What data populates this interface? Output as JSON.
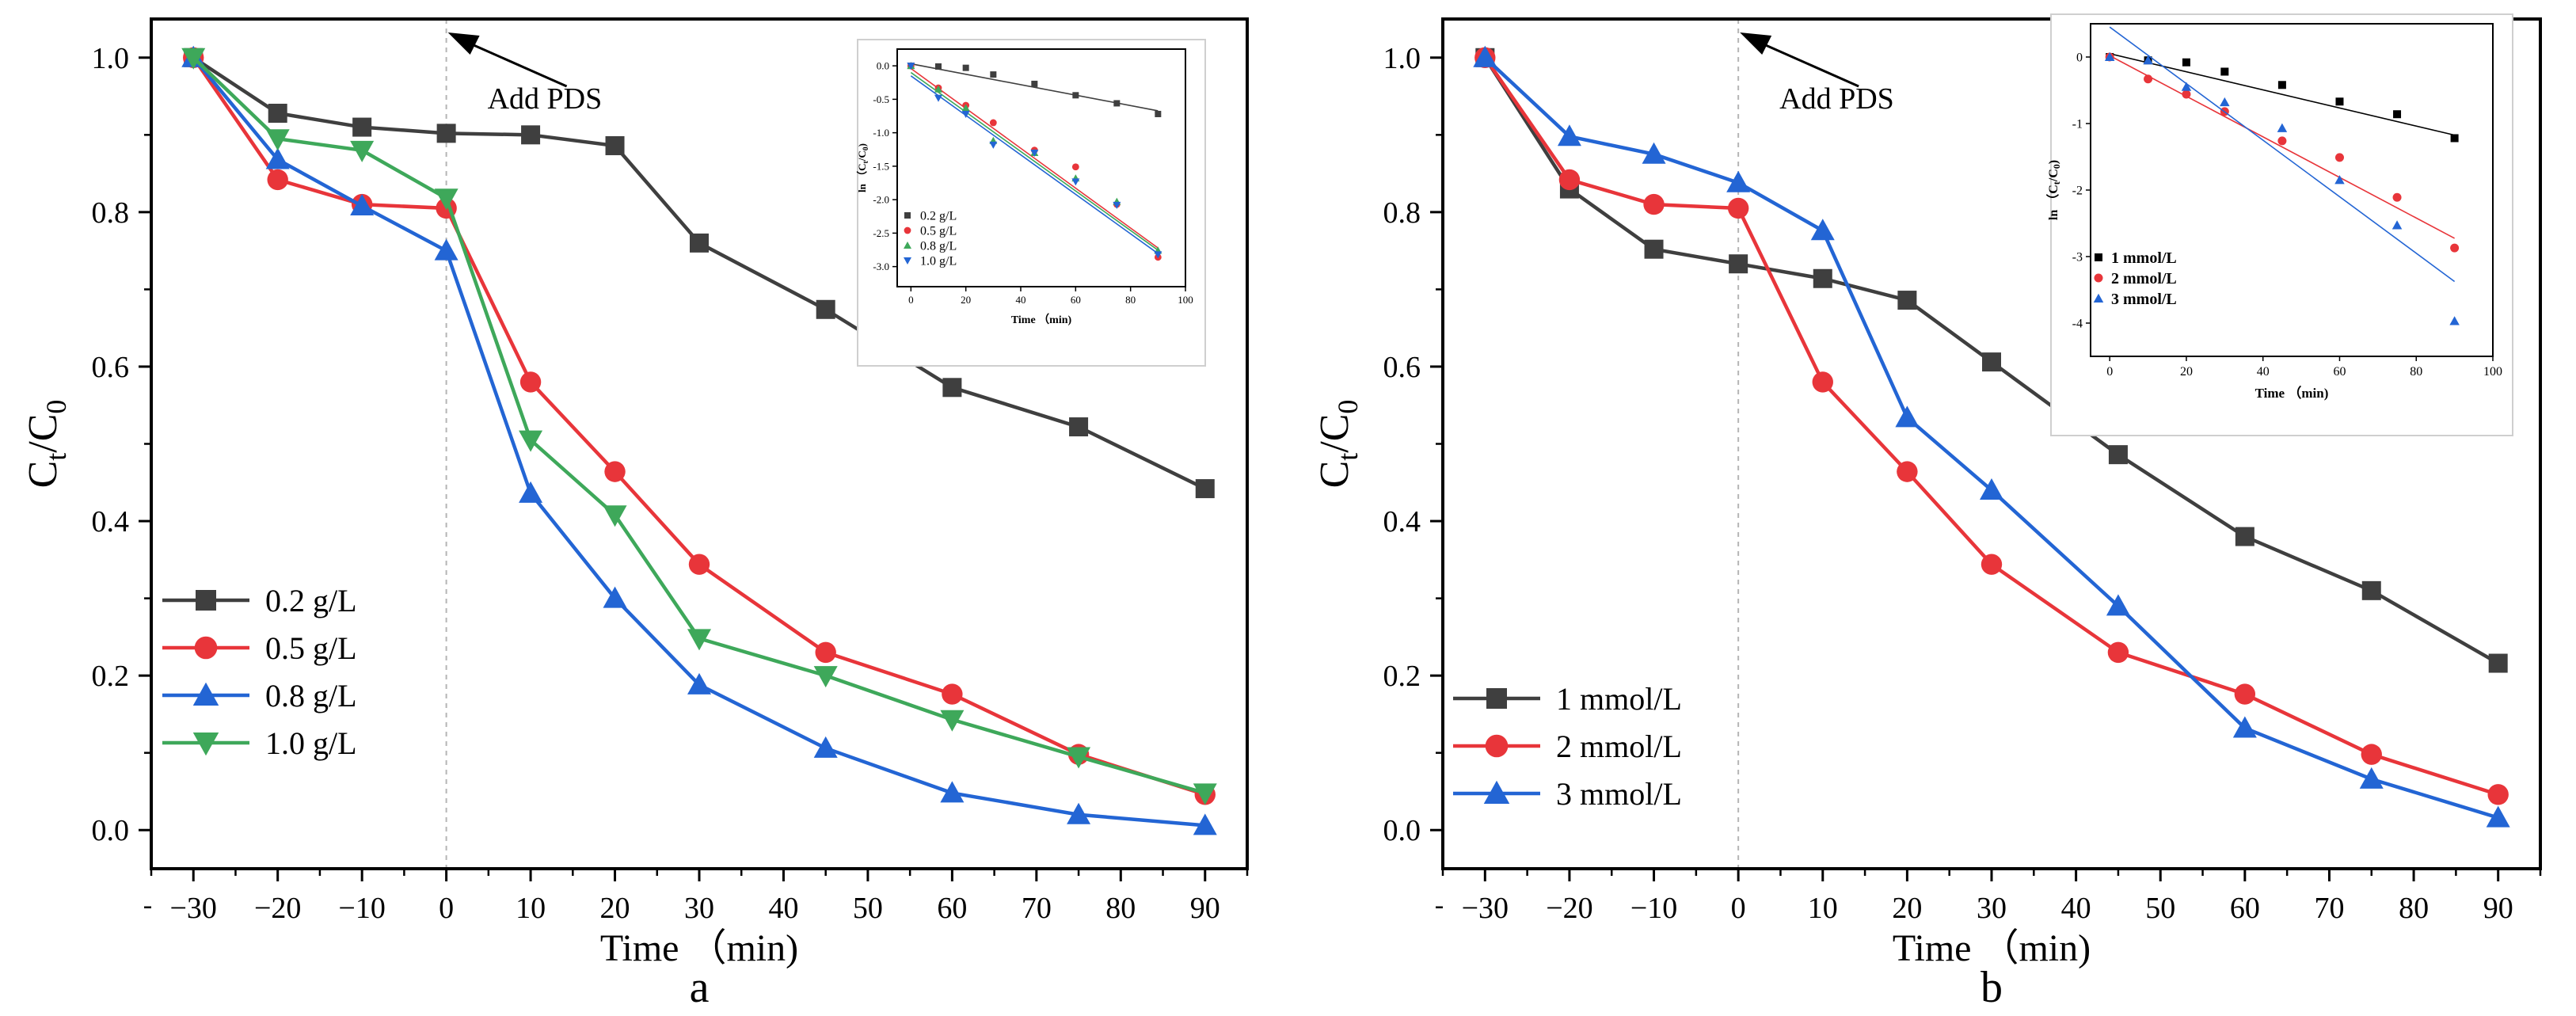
{
  "panel_labels": [
    "a",
    "b"
  ],
  "chart_data": [
    {
      "type": "line",
      "panel": "a",
      "xlabel": "Time （min)",
      "ylabel_main": "C",
      "ylabel_sub1": "t",
      "ylabel_mid": "/C",
      "ylabel_sub2": "0",
      "xlim": [
        -35,
        95
      ],
      "ylim": [
        -0.05,
        1.05
      ],
      "xticks": [
        -30,
        -20,
        -10,
        0,
        10,
        20,
        30,
        40,
        50,
        60,
        70,
        80,
        90
      ],
      "yticks": [
        0.0,
        0.2,
        0.4,
        0.6,
        0.8,
        1.0
      ],
      "x": [
        -30,
        -20,
        -10,
        0,
        10,
        20,
        30,
        45,
        60,
        75,
        90
      ],
      "annotation": "Add PDS",
      "legend_position": "lower-left",
      "series": [
        {
          "name": "0.2 g/L",
          "color": "#3f3f3f",
          "marker": "square",
          "values": [
            1.0,
            0.928,
            0.91,
            0.902,
            0.9,
            0.886,
            0.76,
            0.674,
            0.573,
            0.522,
            0.442
          ]
        },
        {
          "name": "0.5 g/L",
          "color": "#e8353a",
          "marker": "circle",
          "values": [
            1.0,
            0.842,
            0.81,
            0.805,
            0.58,
            0.464,
            0.344,
            0.23,
            0.176,
            0.098,
            0.046
          ]
        },
        {
          "name": "0.8 g/L",
          "color": "#2365d4",
          "marker": "triangle-up",
          "values": [
            1.0,
            0.868,
            0.808,
            0.75,
            0.436,
            0.3,
            0.188,
            0.106,
            0.048,
            0.02,
            0.006
          ]
        },
        {
          "name": "1.0 g/L",
          "color": "#3ea85a",
          "marker": "triangle-down",
          "values": [
            1.0,
            0.895,
            0.88,
            0.818,
            0.505,
            0.408,
            0.248,
            0.2,
            0.143,
            0.095,
            0.048
          ]
        }
      ],
      "inset": {
        "type": "scatter",
        "xlabel": "Time （min)",
        "ylabel": "ln （C",
        "ylabel_sub1": "t",
        "ylabel_mid": "/C",
        "ylabel_sub2": "0",
        "ylabel_end": ")",
        "xlim": [
          -5,
          100
        ],
        "ylim": [
          -3.3,
          0.25
        ],
        "xticks": [
          0,
          20,
          40,
          60,
          80,
          100
        ],
        "yticks": [
          0.0,
          -0.5,
          -1.0,
          -1.5,
          -2.0,
          -2.5,
          -3.0
        ],
        "ytick_labels": [
          "0.0",
          "-0.5",
          "-1.0",
          "-1.5",
          "-2.0",
          "-2.5",
          "-3.0"
        ],
        "x": [
          0,
          10,
          20,
          30,
          45,
          60,
          75,
          90
        ],
        "legend_position": "lower-left",
        "series": [
          {
            "name": "0.2 g/L",
            "color": "#3f3f3f",
            "marker": "square",
            "values": [
              0.0,
              -0.01,
              -0.03,
              -0.13,
              -0.27,
              -0.44,
              -0.56,
              -0.72
            ],
            "fit": [
              0.03,
              -0.0078
            ]
          },
          {
            "name": "0.5 g/L",
            "color": "#e8353a",
            "marker": "circle",
            "values": [
              0.0,
              -0.33,
              -0.59,
              -0.85,
              -1.26,
              -1.51,
              -2.07,
              -2.86
            ],
            "fit": [
              -0.04,
              -0.0298
            ]
          },
          {
            "name": "0.8 g/L",
            "color": "#3ea85a",
            "marker": "triangle-up",
            "values": [
              0.0,
              -0.35,
              -0.63,
              -1.12,
              -1.3,
              -1.68,
              -2.03,
              -2.76
            ],
            "fit": [
              -0.1,
              -0.0295
            ]
          },
          {
            "name": "1.0 g/L",
            "color": "#2365d4",
            "marker": "triangle-down",
            "values": [
              0.0,
              -0.48,
              -0.72,
              -1.18,
              -1.3,
              -1.73,
              -2.08,
              -2.82
            ],
            "fit": [
              -0.15,
              -0.0295
            ]
          }
        ]
      }
    },
    {
      "type": "line",
      "panel": "b",
      "xlabel": "Time （min)",
      "ylabel_main": "C",
      "ylabel_sub1": "t",
      "ylabel_mid": "/C",
      "ylabel_sub2": "0",
      "xlim": [
        -35,
        95
      ],
      "ylim": [
        -0.05,
        1.05
      ],
      "xticks": [
        -30,
        -20,
        -10,
        0,
        10,
        20,
        30,
        40,
        50,
        60,
        70,
        80,
        90
      ],
      "yticks": [
        0.0,
        0.2,
        0.4,
        0.6,
        0.8,
        1.0
      ],
      "x": [
        -30,
        -20,
        -10,
        0,
        10,
        20,
        30,
        45,
        60,
        75,
        90
      ],
      "annotation": "Add PDS",
      "legend_position": "lower-left",
      "series": [
        {
          "name": "1 mmol/L",
          "color": "#3f3f3f",
          "marker": "square",
          "values": [
            1.0,
            0.83,
            0.752,
            0.733,
            0.714,
            0.686,
            0.606,
            0.486,
            0.38,
            0.31,
            0.216
          ]
        },
        {
          "name": "2 mmol/L",
          "color": "#e8353a",
          "marker": "circle",
          "values": [
            1.0,
            0.842,
            0.81,
            0.805,
            0.58,
            0.464,
            0.344,
            0.23,
            0.176,
            0.098,
            0.046
          ]
        },
        {
          "name": "3 mmol/L",
          "color": "#2365d4",
          "marker": "triangle-up",
          "values": [
            1.0,
            0.898,
            0.875,
            0.838,
            0.776,
            0.534,
            0.44,
            0.29,
            0.132,
            0.066,
            0.016
          ]
        }
      ],
      "inset": {
        "type": "scatter",
        "xlabel": "Time （min)",
        "ylabel": "ln （C",
        "ylabel_sub1": "t",
        "ylabel_mid": "/C",
        "ylabel_sub2": "0",
        "ylabel_end": ")",
        "xlim": [
          -5,
          100
        ],
        "ylim": [
          -4.5,
          0.5
        ],
        "xticks": [
          0,
          20,
          40,
          60,
          80,
          100
        ],
        "yticks": [
          0,
          -1,
          -2,
          -3,
          -4
        ],
        "ytick_labels": [
          "0",
          "-1",
          "-2",
          "-3",
          "-4"
        ],
        "x": [
          0,
          10,
          20,
          30,
          45,
          60,
          75,
          90
        ],
        "legend_position": "lower-left",
        "series": [
          {
            "name": "1 mmol/L",
            "color": "#000000",
            "marker": "square",
            "values": [
              0.0,
              -0.05,
              -0.08,
              -0.22,
              -0.42,
              -0.67,
              -0.86,
              -1.22
            ],
            "fit": [
              0.05,
              -0.0136
            ]
          },
          {
            "name": "2 mmol/L",
            "color": "#e8353a",
            "marker": "circle",
            "values": [
              0.0,
              -0.33,
              -0.56,
              -0.82,
              -1.26,
              -1.51,
              -2.11,
              -2.87
            ],
            "fit": [
              0.02,
              -0.0305
            ]
          },
          {
            "name": "3 mmol/L",
            "color": "#2365d4",
            "marker": "triangle-up",
            "values": [
              0.0,
              -0.05,
              -0.45,
              -0.68,
              -1.07,
              -1.85,
              -2.53,
              -3.97
            ],
            "fit": [
              0.45,
              -0.0425
            ]
          }
        ]
      }
    }
  ]
}
